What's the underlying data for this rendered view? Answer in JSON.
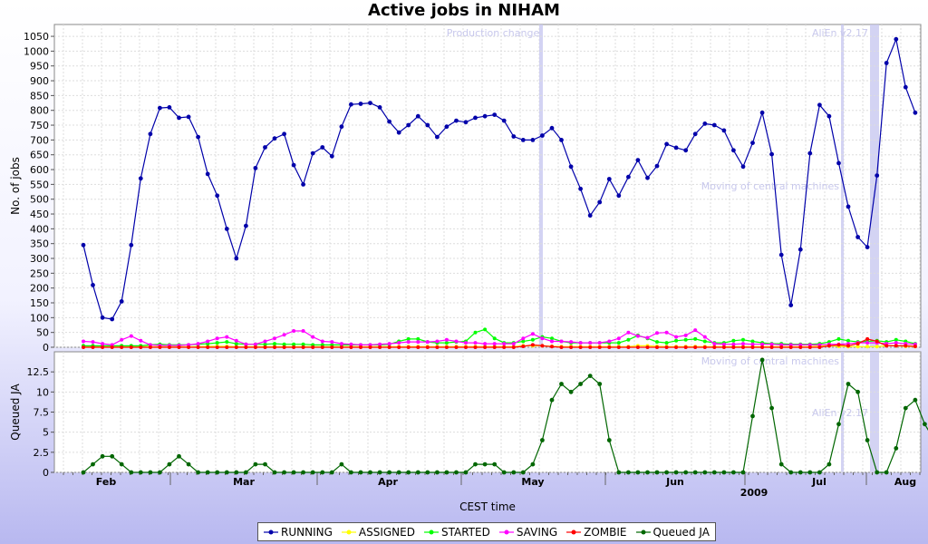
{
  "title": "Active jobs in NIHAM",
  "chart_data": [
    {
      "type": "line",
      "title": "Active jobs in NIHAM",
      "ylabel": "No. of jobs",
      "ylim": [
        0,
        1090
      ],
      "yticks": [
        0,
        50,
        100,
        150,
        200,
        250,
        300,
        350,
        400,
        450,
        500,
        550,
        600,
        650,
        700,
        750,
        800,
        850,
        900,
        950,
        1000,
        1050
      ],
      "annotations": [
        "Production change",
        "AliEn v2.17",
        "Moving of central machines"
      ],
      "series": [
        {
          "name": "RUNNING",
          "color": "#0000aa",
          "values": [
            345,
            210,
            100,
            95,
            155,
            345,
            570,
            720,
            808,
            810,
            775,
            778,
            710,
            585,
            512,
            400,
            300,
            410,
            605,
            675,
            705,
            720,
            615,
            550,
            655,
            675,
            645,
            745,
            820,
            822,
            825,
            810,
            762,
            725,
            750,
            780,
            750,
            710,
            745,
            765,
            760,
            775,
            780,
            785,
            765,
            712,
            700,
            700,
            715,
            740,
            700,
            610,
            535,
            445,
            490,
            568,
            512,
            575,
            632,
            572,
            612,
            686,
            674,
            665,
            720,
            755,
            750,
            732,
            665,
            610,
            690,
            792,
            652,
            312,
            142,
            330,
            655,
            818,
            780,
            622,
            475,
            372,
            338,
            580,
            960,
            1040,
            878,
            792
          ]
        },
        {
          "name": "ASSIGNED",
          "color": "#ffff00",
          "values": [
            3,
            2,
            2,
            2,
            2,
            2,
            2,
            2,
            2,
            2,
            2,
            2,
            2,
            3,
            3,
            3,
            2,
            2,
            2,
            2,
            2,
            2,
            2,
            2,
            2,
            2,
            2,
            2,
            2,
            2,
            2,
            2,
            2,
            2,
            2,
            2,
            2,
            2,
            2,
            2,
            2,
            2,
            2,
            2,
            2,
            2,
            5,
            5,
            5,
            3,
            2,
            2,
            2,
            2,
            2,
            2,
            2,
            2,
            5,
            5,
            3,
            2,
            2,
            2,
            2,
            2,
            2,
            2,
            2,
            2,
            2,
            2,
            2,
            2,
            2,
            2,
            2,
            5,
            5,
            3,
            2,
            2,
            2,
            2,
            5,
            5,
            3,
            2
          ]
        },
        {
          "name": "STARTED",
          "color": "#00ff00",
          "values": [
            5,
            5,
            5,
            5,
            5,
            5,
            5,
            8,
            10,
            8,
            8,
            8,
            10,
            12,
            15,
            18,
            12,
            10,
            10,
            10,
            12,
            10,
            10,
            10,
            8,
            8,
            8,
            8,
            8,
            8,
            8,
            8,
            10,
            20,
            28,
            28,
            18,
            15,
            15,
            18,
            20,
            50,
            60,
            30,
            15,
            15,
            20,
            25,
            35,
            30,
            20,
            15,
            15,
            15,
            15,
            15,
            15,
            25,
            40,
            30,
            18,
            15,
            22,
            25,
            28,
            20,
            15,
            15,
            22,
            25,
            20,
            15,
            12,
            12,
            10,
            10,
            10,
            12,
            18,
            28,
            22,
            18,
            20,
            22,
            18,
            25,
            20,
            12
          ]
        },
        {
          "name": "SAVING",
          "color": "#ff00ff",
          "values": [
            20,
            18,
            12,
            8,
            25,
            38,
            22,
            8,
            6,
            6,
            6,
            8,
            12,
            20,
            30,
            35,
            22,
            10,
            10,
            20,
            30,
            42,
            55,
            55,
            35,
            20,
            18,
            12,
            10,
            8,
            8,
            10,
            12,
            15,
            18,
            18,
            18,
            20,
            25,
            20,
            15,
            15,
            12,
            12,
            12,
            12,
            30,
            45,
            30,
            20,
            20,
            18,
            15,
            15,
            15,
            20,
            30,
            50,
            38,
            32,
            48,
            50,
            35,
            40,
            58,
            35,
            12,
            10,
            10,
            12,
            10,
            10,
            10,
            8,
            8,
            8,
            8,
            8,
            10,
            10,
            12,
            15,
            15,
            15,
            12,
            15,
            12,
            10
          ]
        },
        {
          "name": "ZOMBIE",
          "color": "#ff0000",
          "values": [
            0,
            0,
            0,
            0,
            0,
            0,
            0,
            0,
            0,
            0,
            0,
            0,
            0,
            0,
            0,
            0,
            0,
            0,
            0,
            0,
            0,
            0,
            0,
            0,
            0,
            0,
            0,
            0,
            0,
            0,
            0,
            0,
            0,
            0,
            0,
            0,
            0,
            0,
            0,
            0,
            0,
            0,
            0,
            0,
            0,
            0,
            3,
            8,
            5,
            2,
            0,
            0,
            0,
            0,
            0,
            0,
            0,
            0,
            0,
            0,
            0,
            0,
            0,
            0,
            0,
            0,
            0,
            0,
            0,
            0,
            0,
            0,
            0,
            0,
            0,
            0,
            0,
            0,
            5,
            8,
            5,
            12,
            28,
            20,
            5,
            5,
            5,
            3
          ]
        }
      ]
    },
    {
      "type": "line",
      "ylabel": "Queued JA",
      "xlabel": "CEST time",
      "ylim": [
        0,
        15
      ],
      "yticks": [
        0,
        2.5,
        5,
        7.5,
        10,
        12.5
      ],
      "month_labels": [
        "Feb",
        "Mar",
        "Apr",
        "May",
        "Jun",
        "Jul",
        "Aug"
      ],
      "year_label": "2009",
      "series": [
        {
          "name": "Queued JA",
          "color": "#006600",
          "values": [
            0,
            1,
            2,
            2,
            1,
            0,
            0,
            0,
            0,
            1,
            2,
            1,
            0,
            0,
            0,
            0,
            0,
            0,
            1,
            1,
            0,
            0,
            0,
            0,
            0,
            0,
            0,
            1,
            0,
            0,
            0,
            0,
            0,
            0,
            0,
            0,
            0,
            0,
            0,
            0,
            0,
            1,
            1,
            1,
            0,
            0,
            0,
            1,
            4,
            9,
            11,
            10,
            11,
            12,
            11,
            4,
            0,
            0,
            0,
            0,
            0,
            0,
            0,
            0,
            0,
            0,
            0,
            0,
            0,
            0,
            7,
            14,
            8,
            1,
            0,
            0,
            0,
            0,
            1,
            6,
            11,
            10,
            4,
            0,
            0,
            3,
            8,
            9,
            6,
            4
          ]
        }
      ]
    }
  ],
  "legend": [
    "RUNNING",
    "ASSIGNED",
    "STARTED",
    "SAVING",
    "ZOMBIE",
    "Queued JA"
  ]
}
